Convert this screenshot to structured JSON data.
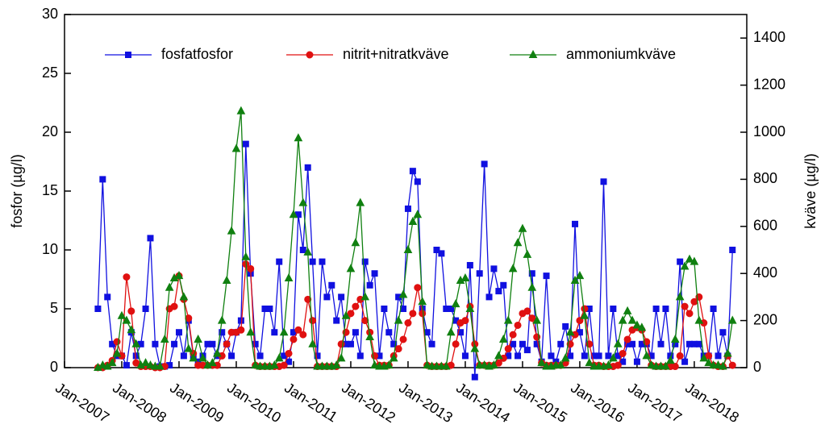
{
  "chart_data": {
    "type": "line",
    "ylabel": "fosfor (µg/l)",
    "y2label": "kväve (µg/l)",
    "xlim": [
      "2007-01",
      "2018-12"
    ],
    "xticks": [
      {
        "value": "2007-01",
        "label": "Jan-2007"
      },
      {
        "value": "2008-01",
        "label": "Jan-2008"
      },
      {
        "value": "2009-01",
        "label": "Jan-2009"
      },
      {
        "value": "2010-01",
        "label": "Jan-2010"
      },
      {
        "value": "2011-01",
        "label": "Jan-2011"
      },
      {
        "value": "2012-01",
        "label": "Jan-2012"
      },
      {
        "value": "2013-01",
        "label": "Jan-2013"
      },
      {
        "value": "2014-01",
        "label": "Jan-2014"
      },
      {
        "value": "2015-01",
        "label": "Jan-2015"
      },
      {
        "value": "2016-01",
        "label": "Jan-2016"
      },
      {
        "value": "2017-01",
        "label": "Jan-2017"
      },
      {
        "value": "2018-01",
        "label": "Jan-2018"
      }
    ],
    "ylim": [
      0,
      30
    ],
    "yticks": [
      0,
      5,
      10,
      15,
      20,
      25,
      30
    ],
    "y2lim": [
      0,
      1500
    ],
    "y2ticks": [
      0,
      200,
      400,
      600,
      800,
      1000,
      1200,
      1400
    ],
    "legend": "top",
    "x": [
      "2007-08",
      "2007-09",
      "2007-10",
      "2007-11",
      "2007-12",
      "2008-01",
      "2008-02",
      "2008-03",
      "2008-04",
      "2008-05",
      "2008-06",
      "2008-07",
      "2008-08",
      "2008-09",
      "2008-10",
      "2008-11",
      "2008-12",
      "2009-01",
      "2009-02",
      "2009-03",
      "2009-04",
      "2009-05",
      "2009-06",
      "2009-07",
      "2009-08",
      "2009-09",
      "2009-10",
      "2009-11",
      "2009-12",
      "2010-01",
      "2010-02",
      "2010-03",
      "2010-04",
      "2010-05",
      "2010-06",
      "2010-07",
      "2010-08",
      "2010-09",
      "2010-10",
      "2010-11",
      "2010-12",
      "2011-01",
      "2011-02",
      "2011-03",
      "2011-04",
      "2011-05",
      "2011-06",
      "2011-07",
      "2011-08",
      "2011-09",
      "2011-10",
      "2011-11",
      "2011-12",
      "2012-01",
      "2012-02",
      "2012-03",
      "2012-04",
      "2012-05",
      "2012-06",
      "2012-07",
      "2012-08",
      "2012-09",
      "2012-10",
      "2012-11",
      "2012-12",
      "2013-01",
      "2013-02",
      "2013-03",
      "2013-04",
      "2013-05",
      "2013-06",
      "2013-07",
      "2013-08",
      "2013-09",
      "2013-10",
      "2013-11",
      "2013-12",
      "2014-01",
      "2014-02",
      "2014-03",
      "2014-04",
      "2014-05",
      "2014-06",
      "2014-07",
      "2014-08",
      "2014-09",
      "2014-10",
      "2014-11",
      "2014-12",
      "2015-01",
      "2015-02",
      "2015-03",
      "2015-04",
      "2015-05",
      "2015-06",
      "2015-07",
      "2015-08",
      "2015-09",
      "2015-10",
      "2015-11",
      "2015-12",
      "2016-01",
      "2016-02",
      "2016-03",
      "2016-04",
      "2016-05",
      "2016-06",
      "2016-07",
      "2016-08",
      "2016-09",
      "2016-10",
      "2016-11",
      "2016-12",
      "2017-01",
      "2017-02",
      "2017-03",
      "2017-04",
      "2017-05",
      "2017-06",
      "2017-07",
      "2017-08",
      "2017-09",
      "2017-10",
      "2017-11",
      "2017-12",
      "2018-01",
      "2018-02",
      "2018-03",
      "2018-04",
      "2018-05",
      "2018-06",
      "2018-07",
      "2018-08",
      "2018-09"
    ],
    "series": [
      {
        "name": "fosfatfosfor",
        "color": "#1010e0",
        "marker": "square",
        "axis": "y",
        "values": [
          5,
          16,
          6,
          2,
          1,
          1,
          0.2,
          3,
          1,
          2,
          5,
          11,
          2,
          0.1,
          0.1,
          0.2,
          2,
          3,
          1,
          4,
          1,
          0.5,
          1,
          2,
          2,
          1,
          3,
          2,
          1,
          3,
          4,
          19,
          8,
          2,
          1,
          5,
          5,
          3,
          9,
          1,
          0.5,
          3,
          13,
          10,
          17,
          9,
          1,
          9,
          6,
          7,
          4,
          6,
          2,
          2,
          3,
          1,
          9,
          7,
          8,
          1,
          5,
          3,
          2,
          6,
          5,
          13.5,
          16.7,
          15.8,
          5,
          3,
          2,
          10,
          9.7,
          5,
          5,
          4,
          3,
          1,
          8.7,
          -0.8,
          8,
          17.3,
          6,
          8.4,
          6.5,
          7,
          1,
          2,
          1,
          2,
          1.5,
          8,
          2,
          0.5,
          7.8,
          1,
          0.5,
          2,
          3.5,
          1,
          12.2,
          3,
          1,
          5,
          1,
          1,
          15.8,
          1,
          5,
          1,
          0.5,
          2,
          2,
          0.5,
          2,
          2,
          1,
          5,
          2,
          5,
          1,
          2,
          9,
          0.5,
          2,
          2,
          2,
          1,
          1,
          5,
          1,
          3,
          1,
          10
        ]
      },
      {
        "name": "nitrit+nitratkväve",
        "color": "#e01010",
        "marker": "circle",
        "axis": "y2",
        "values": [
          0,
          0,
          10,
          30,
          110,
          50,
          385,
          240,
          20,
          5,
          5,
          5,
          0,
          0,
          5,
          250,
          260,
          390,
          290,
          210,
          60,
          10,
          10,
          10,
          10,
          10,
          50,
          100,
          150,
          150,
          160,
          440,
          420,
          10,
          5,
          5,
          5,
          5,
          5,
          10,
          60,
          120,
          160,
          140,
          290,
          200,
          5,
          5,
          5,
          5,
          5,
          100,
          150,
          230,
          260,
          290,
          200,
          150,
          50,
          10,
          10,
          10,
          50,
          80,
          120,
          190,
          230,
          340,
          230,
          10,
          5,
          5,
          5,
          5,
          10,
          100,
          190,
          200,
          260,
          100,
          10,
          10,
          10,
          10,
          20,
          40,
          80,
          140,
          180,
          230,
          240,
          210,
          130,
          20,
          10,
          10,
          10,
          10,
          20,
          100,
          140,
          200,
          250,
          100,
          10,
          10,
          5,
          5,
          5,
          10,
          60,
          120,
          160,
          170,
          160,
          110,
          10,
          5,
          5,
          5,
          5,
          5,
          50,
          260,
          230,
          280,
          300,
          190,
          50,
          10,
          5,
          5,
          50,
          10
        ]
      },
      {
        "name": "ammoniumkväve",
        "color": "#108010",
        "marker": "triangle",
        "axis": "y2",
        "values": [
          0,
          10,
          5,
          20,
          60,
          220,
          200,
          160,
          100,
          10,
          20,
          10,
          5,
          5,
          120,
          340,
          380,
          390,
          300,
          80,
          40,
          120,
          40,
          10,
          20,
          60,
          200,
          370,
          580,
          930,
          1090,
          470,
          150,
          10,
          5,
          5,
          5,
          10,
          40,
          150,
          380,
          650,
          975,
          700,
          490,
          100,
          5,
          5,
          5,
          5,
          10,
          40,
          220,
          420,
          530,
          700,
          300,
          130,
          10,
          5,
          5,
          10,
          40,
          200,
          310,
          500,
          620,
          650,
          280,
          10,
          5,
          5,
          5,
          5,
          150,
          270,
          370,
          380,
          250,
          80,
          10,
          10,
          5,
          10,
          50,
          120,
          200,
          420,
          530,
          590,
          480,
          340,
          200,
          20,
          5,
          5,
          10,
          10,
          40,
          150,
          370,
          390,
          220,
          20,
          5,
          5,
          5,
          10,
          40,
          100,
          200,
          240,
          200,
          180,
          170,
          50,
          10,
          5,
          5,
          5,
          30,
          120,
          300,
          430,
          460,
          450,
          200,
          40,
          20,
          10,
          10,
          5,
          60,
          200
        ]
      }
    ]
  }
}
